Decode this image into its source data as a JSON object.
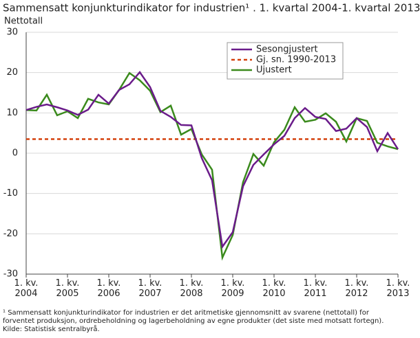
{
  "chart_data": {
    "type": "line",
    "title": "Sammensatt konjunkturindikator for industrien¹ . 1. kvartal 2004-1. kvartal 2013",
    "y_label": "Nettotall",
    "categories": [
      "1. kv. 2004",
      null,
      null,
      null,
      "1. kv. 2005",
      null,
      null,
      null,
      "1. kv. 2006",
      null,
      null,
      null,
      "1. kv. 2007",
      null,
      null,
      null,
      "1. kv. 2008",
      null,
      null,
      null,
      "1. kv. 2009",
      null,
      null,
      null,
      "1. kv. 2010",
      null,
      null,
      null,
      "1. kv. 2011",
      null,
      null,
      null,
      "1. kv. 2012",
      null,
      null,
      null,
      "1. kv. 2013"
    ],
    "series": [
      {
        "name": "Sesongjustert",
        "color": "#6a1b8a",
        "dashed": false,
        "values": [
          10.7,
          11.5,
          12.1,
          11.4,
          10.6,
          9.5,
          10.8,
          14.5,
          12.3,
          15.7,
          17.1,
          20.1,
          16.4,
          10.5,
          9.0,
          7.0,
          6.9,
          -1.2,
          -6.7,
          -23.2,
          -19.6,
          -8.2,
          -2.9,
          -0.3,
          2.2,
          4.3,
          8.7,
          11.2,
          9.0,
          8.5,
          5.5,
          6.1,
          8.7,
          6.5,
          0.5,
          5.0,
          1.0
        ]
      },
      {
        "name": "Gj. sn. 1990-2013",
        "color": "#d4400c",
        "dashed": true,
        "values": [
          3.5,
          3.5,
          3.5,
          3.5,
          3.5,
          3.5,
          3.5,
          3.5,
          3.5,
          3.5,
          3.5,
          3.5,
          3.5,
          3.5,
          3.5,
          3.5,
          3.5,
          3.5,
          3.5,
          3.5,
          3.5,
          3.5,
          3.5,
          3.5,
          3.5,
          3.5,
          3.5,
          3.5,
          3.5,
          3.5,
          3.5,
          3.5,
          3.5,
          3.5,
          3.5,
          3.5,
          3.5
        ]
      },
      {
        "name": "Ujustert",
        "color": "#3a8a1c",
        "dashed": false,
        "values": [
          10.7,
          10.6,
          14.5,
          9.4,
          10.4,
          8.7,
          13.5,
          12.6,
          12.1,
          15.7,
          19.9,
          18.1,
          15.5,
          10.2,
          11.8,
          4.6,
          6.0,
          -0.3,
          -4.1,
          -25.9,
          -20.3,
          -7.2,
          -0.2,
          -3.1,
          2.7,
          5.8,
          11.4,
          7.8,
          8.3,
          9.9,
          7.8,
          2.9,
          8.7,
          8.0,
          2.6,
          1.7,
          1.0
        ]
      }
    ],
    "ylim": [
      -30,
      30
    ],
    "yticks": [
      -30,
      -20,
      -10,
      0,
      10,
      20,
      30
    ],
    "grid": true,
    "notes": [
      "¹ Sammensatt konjunkturindikator for industrien er det aritmetiske gjennomsnitt av svarene (nettotall) for",
      "forventet produksjon, ordrebeholdning og lagerbeholdning av egne produkter (det siste med motsatt fortegn).",
      "Kilde: Statistisk sentralbyrå."
    ]
  }
}
